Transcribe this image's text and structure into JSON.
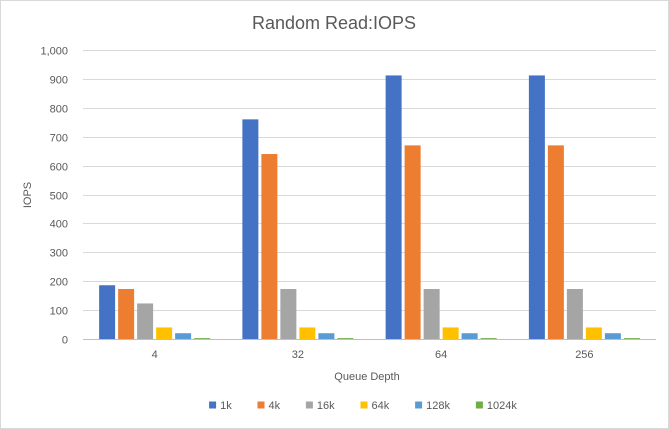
{
  "chart_data": {
    "type": "bar",
    "title": "Random Read:IOPS",
    "xlabel": "Queue Depth",
    "ylabel": "IOPS",
    "categories": [
      "4",
      "32",
      "64",
      "256"
    ],
    "ylim": [
      0,
      1000
    ],
    "yticks": [
      0,
      100,
      200,
      300,
      400,
      500,
      600,
      700,
      800,
      900,
      1000
    ],
    "ytick_labels": [
      "0",
      "100",
      "200",
      "300",
      "400",
      "500",
      "600",
      "700",
      "800",
      "900",
      "1,000"
    ],
    "grid": true,
    "legend_position": "bottom",
    "series": [
      {
        "name": "1k",
        "color": "#4472c4",
        "values": [
          186,
          760,
          912,
          912
        ]
      },
      {
        "name": "4k",
        "color": "#ed7d31",
        "values": [
          173,
          640,
          670,
          670
        ]
      },
      {
        "name": "16k",
        "color": "#a5a5a5",
        "values": [
          123,
          173,
          173,
          173
        ]
      },
      {
        "name": "64k",
        "color": "#ffc000",
        "values": [
          40,
          40,
          40,
          40
        ]
      },
      {
        "name": "128k",
        "color": "#5b9bd5",
        "values": [
          20,
          20,
          20,
          20
        ]
      },
      {
        "name": "1024k",
        "color": "#70ad47",
        "values": [
          3,
          3,
          3,
          3
        ]
      }
    ]
  }
}
